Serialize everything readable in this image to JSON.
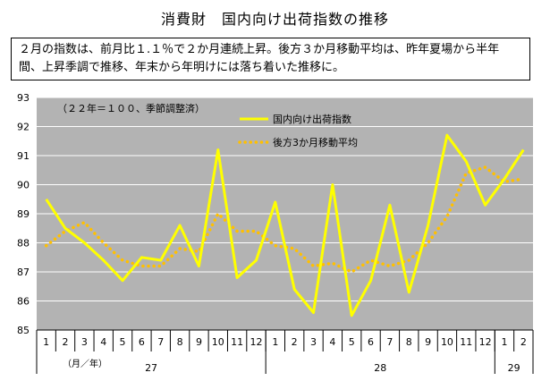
{
  "title": "消費財　国内向け出荷指数の推移",
  "summary": "２月の指数は、前月比１.１％で２か月連続上昇。後方３か月移動平均は、昨年夏場から半年間、上昇季調で推移、年末から年明けには落ち着いた推移に。",
  "colors": {
    "plot_bg": "#b3b3b3",
    "index_line": "#ffff00",
    "moving_avg": "#ffc000"
  },
  "chart_data": {
    "type": "line",
    "note": "（２２年＝１００、季節調整済）",
    "unit_label": "（月／年）",
    "ylim": [
      85,
      93
    ],
    "yticks": [
      85,
      86,
      87,
      88,
      89,
      90,
      91,
      92,
      93
    ],
    "months": [
      "1",
      "2",
      "3",
      "4",
      "5",
      "6",
      "7",
      "8",
      "9",
      "10",
      "11",
      "12",
      "1",
      "2",
      "3",
      "4",
      "5",
      "6",
      "7",
      "8",
      "9",
      "10",
      "11",
      "12",
      "1",
      "2"
    ],
    "years": [
      {
        "label": "27",
        "start": 0,
        "end": 12
      },
      {
        "label": "28",
        "start": 12,
        "end": 24
      },
      {
        "label": "29",
        "start": 24,
        "end": 26
      }
    ],
    "series": [
      {
        "name": "国内向け出荷指数",
        "style": "solid",
        "values": [
          89.5,
          88.5,
          88.0,
          87.4,
          86.7,
          87.5,
          87.4,
          88.6,
          87.2,
          91.2,
          86.8,
          87.4,
          89.4,
          86.4,
          85.6,
          90.0,
          85.5,
          86.7,
          89.3,
          86.3,
          88.6,
          91.7,
          90.8,
          89.3,
          90.2,
          91.2
        ]
      },
      {
        "name": "後方3か月移動平均",
        "style": "dotted",
        "values": [
          87.9,
          88.4,
          88.7,
          88.0,
          87.4,
          87.2,
          87.2,
          87.8,
          87.7,
          89.0,
          88.4,
          88.4,
          87.9,
          87.8,
          87.2,
          87.3,
          87.0,
          87.4,
          87.2,
          87.4,
          88.0,
          88.9,
          90.4,
          90.6,
          90.1,
          90.2
        ]
      }
    ]
  }
}
